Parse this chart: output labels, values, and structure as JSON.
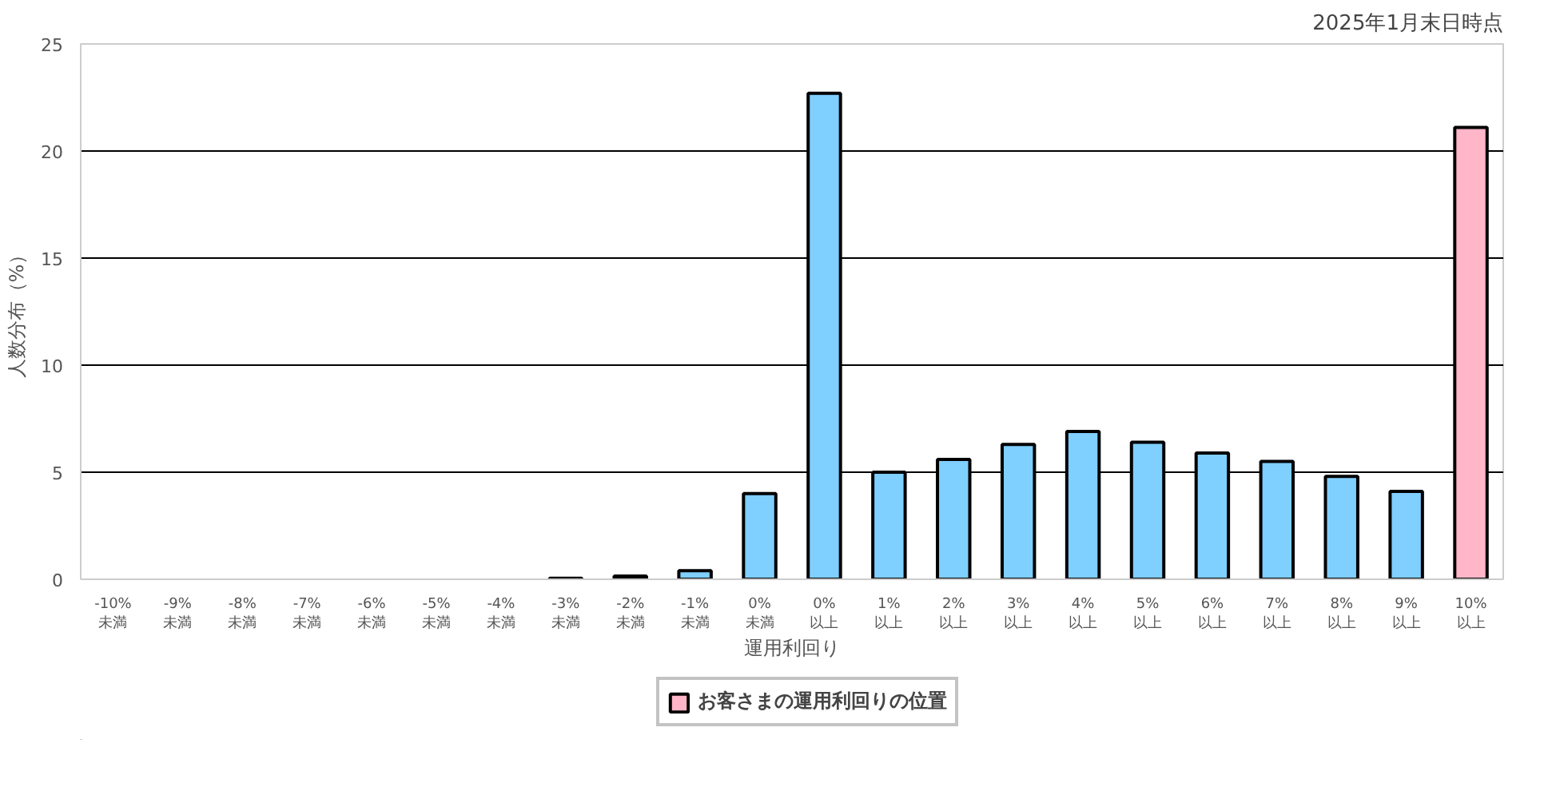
{
  "chart_data": {
    "type": "bar",
    "annotations": [
      "2025年1月末日時点"
    ],
    "xlabel": "運用利回り",
    "ylabel": "人数分布（%）",
    "categories": [
      "-10%\n未満",
      "-9%\n未満",
      "-8%\n未満",
      "-7%\n未満",
      "-6%\n未満",
      "-5%\n未満",
      "-4%\n未満",
      "-3%\n未満",
      "-2%\n未満",
      "-1%\n未満",
      "0%\n未満",
      "0%\n以上",
      "1%\n以上",
      "2%\n以上",
      "3%\n以上",
      "4%\n以上",
      "5%\n以上",
      "6%\n以上",
      "7%\n以上",
      "8%\n以上",
      "9%\n以上",
      "10%\n以上"
    ],
    "series": [
      {
        "color": "#7fcfff",
        "values": [
          0,
          0,
          0,
          0,
          0,
          0,
          0,
          0.05,
          0.15,
          0.4,
          4.0,
          22.7,
          5.0,
          5.6,
          6.3,
          6.9,
          6.4,
          5.9,
          5.5,
          4.8,
          4.1,
          null
        ]
      },
      {
        "name": "お客さまの運用利回りの位置",
        "color": "#ffb6c8",
        "values": [
          null,
          null,
          null,
          null,
          null,
          null,
          null,
          null,
          null,
          null,
          null,
          null,
          null,
          null,
          null,
          null,
          null,
          null,
          null,
          null,
          null,
          21.1
        ]
      }
    ],
    "ylim": [
      0,
      25
    ],
    "yticks": [
      0,
      5,
      10,
      15,
      20,
      25
    ],
    "grid": "y",
    "legend": "bottom"
  }
}
